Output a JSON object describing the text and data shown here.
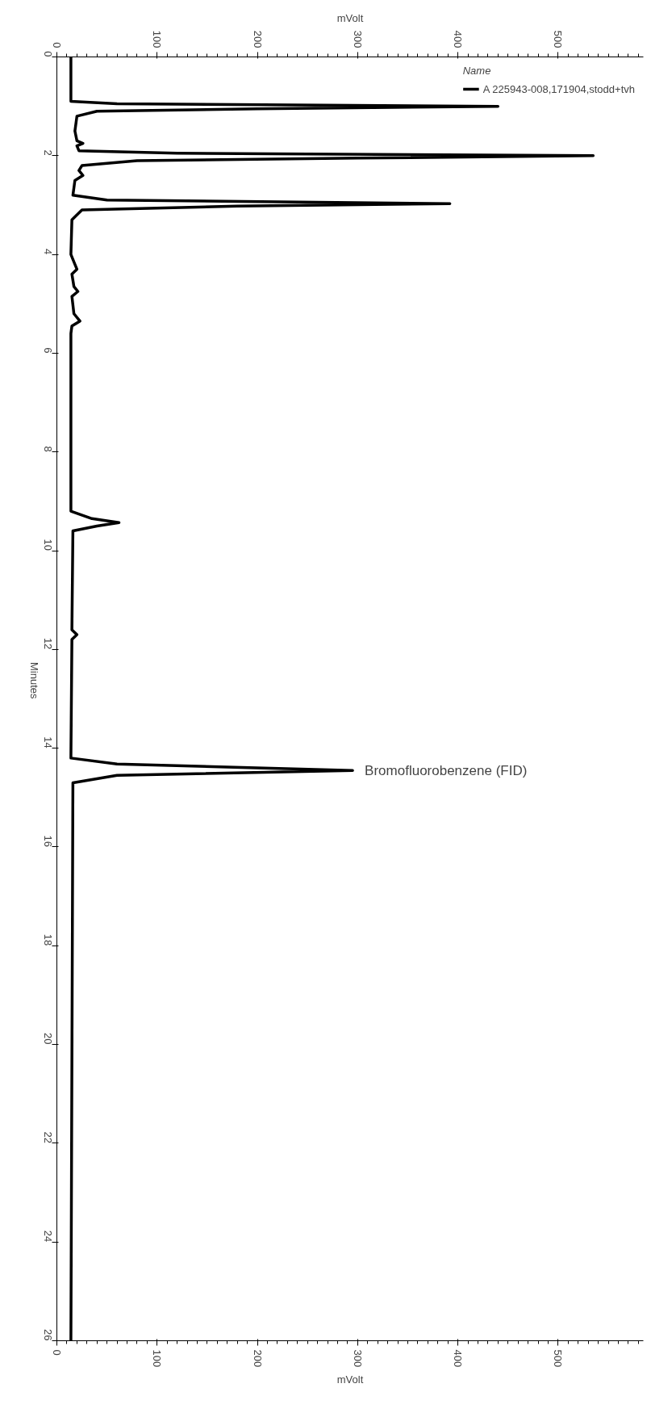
{
  "chart_data": {
    "type": "line",
    "orientation": "horizontal",
    "xlabel": "mVolt",
    "x2label": "mVolt",
    "ylabel": "Minutes",
    "legend_title": "Name",
    "xlim": [
      0,
      585
    ],
    "xticks": [
      0,
      100,
      200,
      300,
      400,
      500
    ],
    "x2lim": [
      0,
      585
    ],
    "x2ticks": [
      0,
      100,
      200,
      300,
      400,
      500
    ],
    "ylim": [
      26,
      0
    ],
    "yticks": [
      0,
      2,
      4,
      6,
      8,
      10,
      12,
      14,
      16,
      18,
      20,
      22,
      24,
      26
    ],
    "grid": false,
    "legend": "top right",
    "marker": "none",
    "line_style": "solid",
    "annotations": [
      {
        "text": "Bromofluorobenzene (FID)",
        "x": 295,
        "y": 14.45
      }
    ],
    "series": [
      {
        "name": "A 225943-008,171904,stodd+tvh",
        "color": "#000000",
        "x": [
          0,
          0.9,
          0.95,
          1.0,
          1.05,
          1.1,
          1.2,
          1.5,
          1.7,
          1.75,
          1.8,
          1.9,
          1.95,
          2.0,
          2.05,
          2.1,
          2.2,
          2.3,
          2.4,
          2.5,
          2.8,
          2.9,
          2.97,
          3.02,
          3.1,
          3.3,
          4.0,
          4.2,
          4.3,
          4.4,
          4.65,
          4.75,
          4.85,
          5.2,
          5.35,
          5.45,
          5.6,
          9.2,
          9.35,
          9.43,
          9.5,
          9.6,
          11.6,
          11.7,
          11.8,
          14.2,
          14.32,
          14.45,
          14.55,
          14.7,
          26
        ],
        "values": [
          14,
          14,
          60,
          440,
          200,
          40,
          20,
          18,
          20,
          26,
          20,
          22,
          120,
          535,
          300,
          80,
          25,
          22,
          26,
          18,
          16,
          50,
          392,
          180,
          25,
          15,
          14,
          18,
          20,
          15,
          17,
          21,
          15,
          17,
          23,
          15,
          14,
          14,
          35,
          62,
          40,
          16,
          15,
          20,
          15,
          14,
          60,
          295,
          60,
          16,
          14
        ]
      }
    ]
  }
}
